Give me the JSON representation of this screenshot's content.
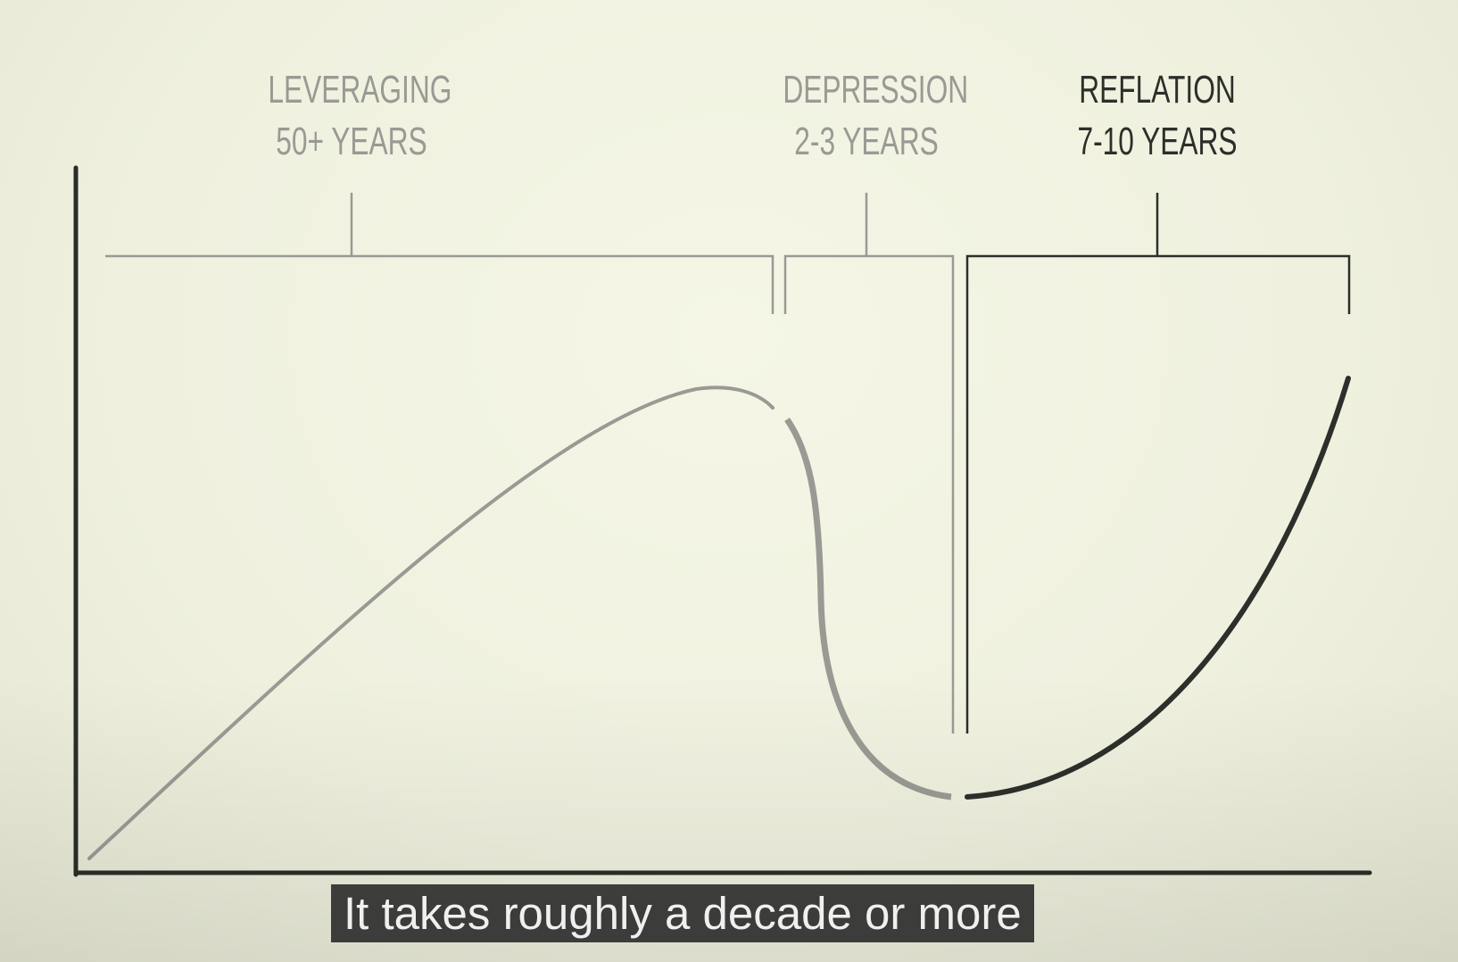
{
  "phases": [
    {
      "id": "leveraging",
      "title": "LEVERAGING",
      "duration": "50+ YEARS",
      "color": "#9a9a94"
    },
    {
      "id": "depression",
      "title": "DEPRESSION",
      "duration": "2-3 YEARS",
      "color": "#9a9a94"
    },
    {
      "id": "reflation",
      "title": "REFLATION",
      "duration": "7-10 YEARS",
      "color": "#2c2f2a"
    }
  ],
  "caption": "It takes roughly a decade or more",
  "colors": {
    "background": "#f1f2e1",
    "axis": "#2a2d28",
    "faded": "#9a9a94",
    "active": "#2c2f2a"
  }
}
